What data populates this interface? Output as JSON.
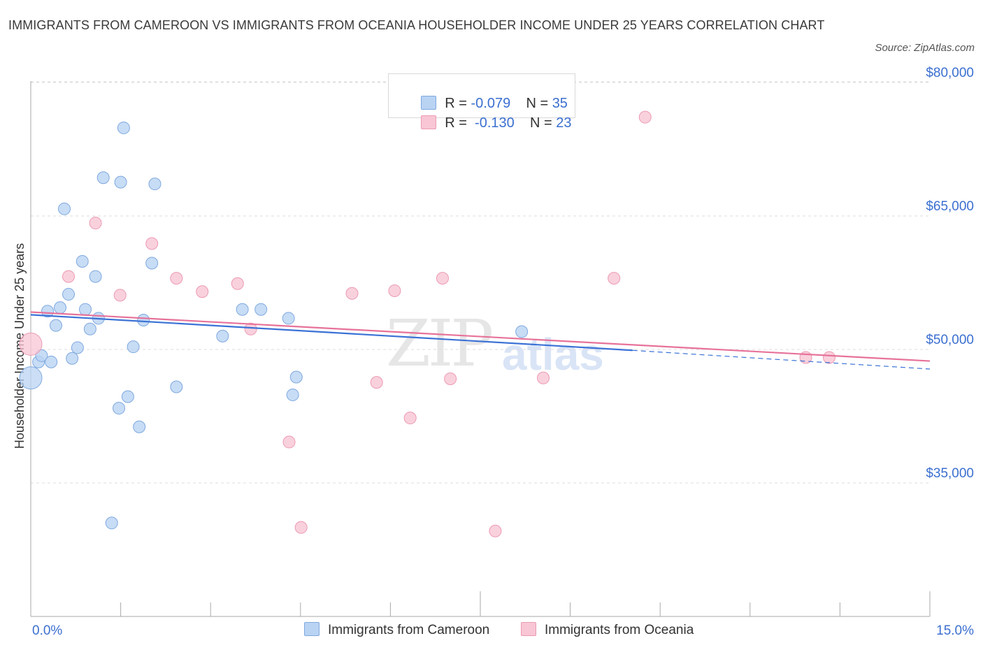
{
  "title": "IMMIGRANTS FROM CAMEROON VS IMMIGRANTS FROM OCEANIA HOUSEHOLDER INCOME UNDER 25 YEARS CORRELATION CHART",
  "source": "Source: ZipAtlas.com",
  "watermark": {
    "zip": "ZIP",
    "atlas": "atlas"
  },
  "colors": {
    "series1_fill": "#b9d3f3",
    "series1_stroke": "#7fa9df",
    "series1_line": "#3b72d6",
    "series2_fill": "#f8c6d4",
    "series2_stroke": "#ec9ab3",
    "series2_line": "#e7729a",
    "axis_label": "#3b6fd0",
    "grid": "#dddddd"
  },
  "legend": {
    "rows": [
      {
        "r_label": "R = ",
        "r_value": "-0.079",
        "n_label": "N = ",
        "n_value": "35"
      },
      {
        "r_label": "R = ",
        "r_value": " -0.130",
        "n_label": "N = ",
        "n_value": "23"
      }
    ]
  },
  "chart_data": {
    "type": "scatter",
    "title": "IMMIGRANTS FROM CAMEROON VS IMMIGRANTS FROM OCEANIA HOUSEHOLDER INCOME UNDER 25 YEARS CORRELATION CHART",
    "xlabel": "",
    "ylabel": "Householder Income Under 25 years",
    "xlim": [
      0,
      15
    ],
    "ylim": [
      20000,
      85000
    ],
    "x_tick_labels": [
      "0.0%",
      "15.0%"
    ],
    "y_ticks": [
      35000,
      50000,
      65000,
      80000
    ],
    "y_tick_labels": [
      "$35,000",
      "$50,000",
      "$65,000",
      "$80,000"
    ],
    "grid": true,
    "legend_position": "bottom",
    "series": [
      {
        "name": "Immigrants from Cameroon",
        "points": [
          {
            "x": 0.0,
            "y": 46800,
            "big": true
          },
          {
            "x": 0.13,
            "y": 48600
          },
          {
            "x": 0.18,
            "y": 49300
          },
          {
            "x": 0.28,
            "y": 54300
          },
          {
            "x": 0.34,
            "y": 48600
          },
          {
            "x": 0.42,
            "y": 52700
          },
          {
            "x": 0.49,
            "y": 54700
          },
          {
            "x": 0.56,
            "y": 65800
          },
          {
            "x": 0.63,
            "y": 56200
          },
          {
            "x": 0.69,
            "y": 49000
          },
          {
            "x": 0.78,
            "y": 50200
          },
          {
            "x": 0.86,
            "y": 59900
          },
          {
            "x": 0.91,
            "y": 54500
          },
          {
            "x": 0.99,
            "y": 52300
          },
          {
            "x": 1.08,
            "y": 58200
          },
          {
            "x": 1.13,
            "y": 53500
          },
          {
            "x": 1.21,
            "y": 69300
          },
          {
            "x": 1.35,
            "y": 30500
          },
          {
            "x": 1.47,
            "y": 43400
          },
          {
            "x": 1.5,
            "y": 68800
          },
          {
            "x": 1.55,
            "y": 74900
          },
          {
            "x": 1.62,
            "y": 44700
          },
          {
            "x": 1.71,
            "y": 50300
          },
          {
            "x": 1.81,
            "y": 41300
          },
          {
            "x": 1.88,
            "y": 53300
          },
          {
            "x": 2.02,
            "y": 59700
          },
          {
            "x": 2.07,
            "y": 68600
          },
          {
            "x": 2.43,
            "y": 45800
          },
          {
            "x": 3.2,
            "y": 51500
          },
          {
            "x": 3.53,
            "y": 54500
          },
          {
            "x": 3.84,
            "y": 54500
          },
          {
            "x": 4.3,
            "y": 53500
          },
          {
            "x": 4.37,
            "y": 44900
          },
          {
            "x": 4.43,
            "y": 46900
          },
          {
            "x": 8.19,
            "y": 52000
          }
        ],
        "trend": {
          "x1": 0.0,
          "y1": 53900,
          "x2": 10.04,
          "y2": 49900,
          "dash_to_x": 15.0,
          "dash_to_y": 47800
        }
      },
      {
        "name": "Immigrants from Oceania",
        "points": [
          {
            "x": 0.0,
            "y": 50600,
            "big": true
          },
          {
            "x": 0.63,
            "y": 58200
          },
          {
            "x": 1.08,
            "y": 64200
          },
          {
            "x": 1.49,
            "y": 56100
          },
          {
            "x": 2.02,
            "y": 61900
          },
          {
            "x": 2.43,
            "y": 58000
          },
          {
            "x": 2.86,
            "y": 56500
          },
          {
            "x": 3.45,
            "y": 57400
          },
          {
            "x": 3.67,
            "y": 52300
          },
          {
            "x": 4.31,
            "y": 39600
          },
          {
            "x": 4.51,
            "y": 30000
          },
          {
            "x": 5.36,
            "y": 56300
          },
          {
            "x": 5.77,
            "y": 46300
          },
          {
            "x": 6.07,
            "y": 56600
          },
          {
            "x": 6.33,
            "y": 42300
          },
          {
            "x": 6.87,
            "y": 58000
          },
          {
            "x": 7.0,
            "y": 46700
          },
          {
            "x": 7.75,
            "y": 29600
          },
          {
            "x": 8.55,
            "y": 46800
          },
          {
            "x": 9.73,
            "y": 58000
          },
          {
            "x": 10.25,
            "y": 76100
          },
          {
            "x": 12.93,
            "y": 49100
          },
          {
            "x": 13.32,
            "y": 49100
          }
        ],
        "trend": {
          "x1": 0.0,
          "y1": 54200,
          "x2": 15.0,
          "y2": 48700
        }
      }
    ]
  }
}
